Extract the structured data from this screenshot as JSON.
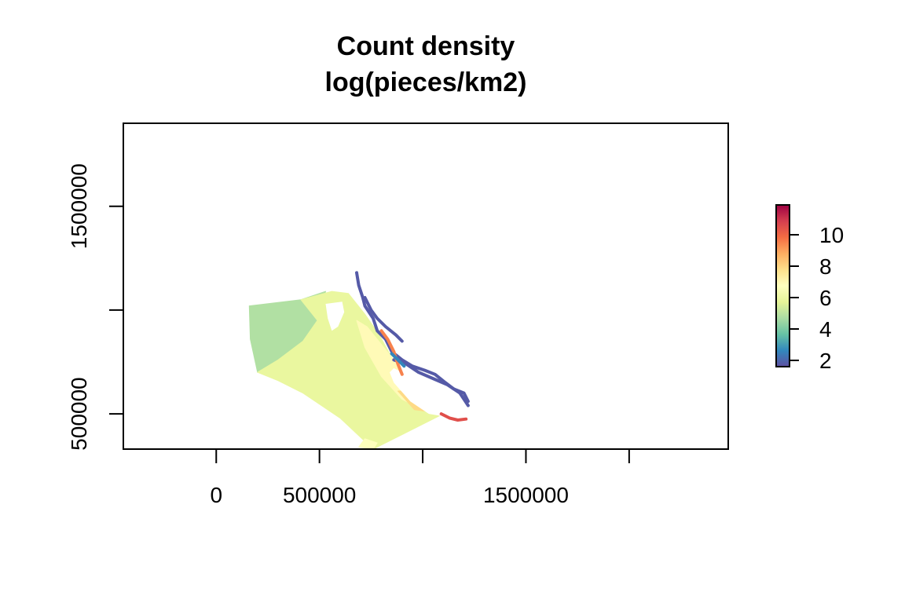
{
  "chart_data": {
    "type": "heatmap",
    "title": "Count density",
    "subtitle": "log(pieces/km2)",
    "x_ticks": [
      {
        "value": 0,
        "label": "0"
      },
      {
        "value": 500000,
        "label": "500000"
      },
      {
        "value": 1000000,
        "label": ""
      },
      {
        "value": 1500000,
        "label": "1500000"
      },
      {
        "value": 2000000,
        "label": ""
      }
    ],
    "y_ticks": [
      {
        "value": 500000,
        "label": "500000"
      },
      {
        "value": 1000000,
        "label": ""
      },
      {
        "value": 1500000,
        "label": "1500000"
      }
    ],
    "xlim": [
      -450000,
      2480000
    ],
    "ylim": [
      330000,
      1900000
    ],
    "color_scale": {
      "ticks": [
        2,
        4,
        6,
        8,
        10
      ],
      "range": [
        1.6,
        11.9
      ],
      "palette": [
        "#5E4FA2",
        "#3288BD",
        "#66C2A5",
        "#ABDDA4",
        "#E6F598",
        "#FFFFBF",
        "#FEE08B",
        "#FDAE61",
        "#F46D43",
        "#D53E4F",
        "#9E0142"
      ]
    },
    "regions": [
      {
        "value": 4.8,
        "polygon": [
          [
            160000,
            1020000
          ],
          [
            410000,
            1050000
          ],
          [
            530000,
            1090000
          ],
          [
            490000,
            950000
          ],
          [
            420000,
            850000
          ],
          [
            300000,
            760000
          ],
          [
            200000,
            700000
          ],
          [
            165000,
            860000
          ]
        ]
      },
      {
        "value": 5.9,
        "polygon": [
          [
            410000,
            1050000
          ],
          [
            560000,
            1090000
          ],
          [
            640000,
            1080000
          ],
          [
            720000,
            980000
          ],
          [
            790000,
            880000
          ],
          [
            900000,
            680000
          ],
          [
            1020000,
            580000
          ],
          [
            1140000,
            520000
          ],
          [
            900000,
            400000
          ],
          [
            760000,
            330000
          ],
          [
            600000,
            480000
          ],
          [
            420000,
            600000
          ],
          [
            300000,
            660000
          ],
          [
            200000,
            700000
          ],
          [
            300000,
            760000
          ],
          [
            420000,
            850000
          ],
          [
            490000,
            950000
          ]
        ]
      },
      {
        "value": 6.9,
        "polygon": [
          [
            680000,
            950000
          ],
          [
            730000,
            920000
          ],
          [
            860000,
            760000
          ],
          [
            900000,
            680000
          ],
          [
            1020000,
            580000
          ],
          [
            1150000,
            520000
          ],
          [
            1040000,
            500000
          ],
          [
            900000,
            570000
          ],
          [
            800000,
            680000
          ],
          [
            720000,
            820000
          ]
        ]
      },
      {
        "value": 7.9,
        "polygon": [
          [
            880000,
            610000
          ],
          [
            960000,
            520000
          ],
          [
            1110000,
            500000
          ],
          [
            1150000,
            520000
          ],
          [
            1030000,
            560000
          ],
          [
            940000,
            610000
          ]
        ]
      },
      {
        "value": 6.7,
        "polygon": [
          [
            690000,
            340000
          ],
          [
            760000,
            330000
          ],
          [
            780000,
            360000
          ],
          [
            720000,
            380000
          ]
        ]
      }
    ],
    "holes": [
      {
        "polygon": [
          [
            530000,
            1030000
          ],
          [
            610000,
            1040000
          ],
          [
            620000,
            990000
          ],
          [
            590000,
            920000
          ],
          [
            560000,
            900000
          ],
          [
            540000,
            960000
          ]
        ]
      },
      {
        "polygon": [
          [
            860000,
            720000
          ],
          [
            980000,
            660000
          ],
          [
            1080000,
            600000
          ],
          [
            1170000,
            560000
          ],
          [
            1210000,
            520000
          ],
          [
            1150000,
            480000
          ],
          [
            1030000,
            500000
          ],
          [
            940000,
            560000
          ],
          [
            860000,
            650000
          ],
          [
            840000,
            700000
          ]
        ]
      }
    ],
    "coast_lines": [
      {
        "value": 1.8,
        "points": [
          [
            680000,
            1180000
          ],
          [
            690000,
            1120000
          ],
          [
            710000,
            1060000
          ],
          [
            720000,
            1020000
          ],
          [
            760000,
            960000
          ],
          [
            780000,
            900000
          ],
          [
            820000,
            860000
          ],
          [
            850000,
            800000
          ],
          [
            900000,
            760000
          ],
          [
            950000,
            730000
          ],
          [
            1010000,
            710000
          ],
          [
            1060000,
            690000
          ],
          [
            1110000,
            650000
          ],
          [
            1150000,
            620000
          ],
          [
            1200000,
            600000
          ],
          [
            1220000,
            560000
          ]
        ]
      },
      {
        "value": 1.8,
        "points": [
          [
            720000,
            1060000
          ],
          [
            750000,
            1000000
          ],
          [
            780000,
            960000
          ],
          [
            820000,
            920000
          ],
          [
            870000,
            880000
          ],
          [
            900000,
            850000
          ]
        ]
      },
      {
        "value": 1.8,
        "points": [
          [
            860000,
            760000
          ],
          [
            920000,
            740000
          ],
          [
            980000,
            700000
          ],
          [
            1050000,
            670000
          ],
          [
            1120000,
            640000
          ],
          [
            1180000,
            600000
          ],
          [
            1220000,
            540000
          ]
        ]
      },
      {
        "value": 10.5,
        "points": [
          [
            1090000,
            500000
          ],
          [
            1130000,
            480000
          ],
          [
            1170000,
            470000
          ],
          [
            1210000,
            475000
          ]
        ]
      },
      {
        "value": 9.5,
        "points": [
          [
            800000,
            900000
          ],
          [
            830000,
            860000
          ],
          [
            860000,
            800000
          ],
          [
            880000,
            740000
          ],
          [
            900000,
            690000
          ]
        ]
      },
      {
        "value": 2.6,
        "points": [
          [
            850000,
            790000
          ],
          [
            880000,
            760000
          ],
          [
            910000,
            730000
          ]
        ]
      }
    ]
  }
}
